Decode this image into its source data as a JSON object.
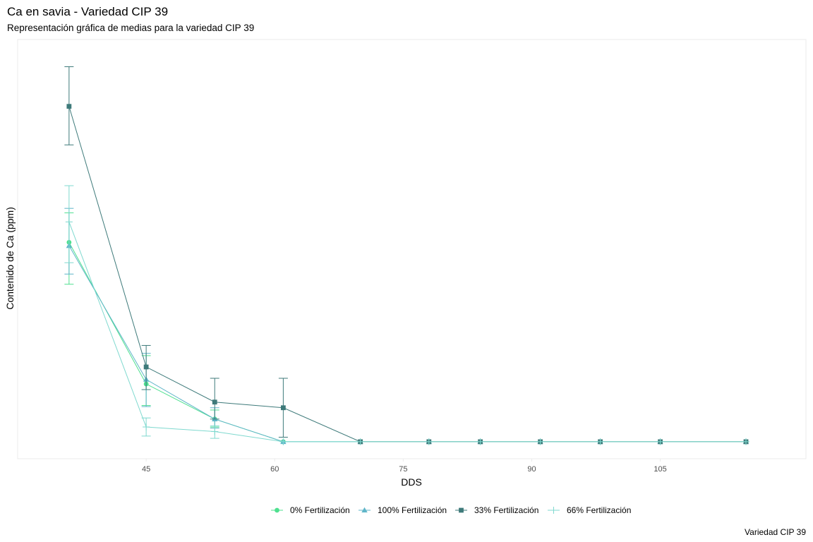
{
  "chart": {
    "title": "Ca en savia - Variedad CIP 39",
    "subtitle": "Representación gráfica de medias para la variedad CIP 39",
    "caption": "Variedad CIP 39"
  },
  "chart_data": {
    "type": "line",
    "xlabel": "DDS",
    "ylabel": "Contenido de Ca (ppm)",
    "xlim": [
      30,
      122
    ],
    "x_ticks": [
      45,
      60,
      75,
      90,
      105
    ],
    "x_tick_labels": [
      "45",
      "60",
      "75",
      "90",
      "105"
    ],
    "ylim": [
      -1.5,
      35.5
    ],
    "y_ticks_shown": false,
    "grid": false,
    "legend_position": "bottom",
    "x": [
      36,
      45,
      53,
      61,
      70,
      78,
      84,
      91,
      98,
      105,
      115
    ],
    "series": [
      {
        "name": "0% Fertilización",
        "color": "#4ee08f",
        "marker": "circle",
        "values": [
          17.6,
          5.1,
          2.0,
          0.0,
          0.0,
          0.0,
          0.0,
          0.0,
          0.0,
          0.0,
          0.0
        ],
        "err_low": [
          13.9,
          3.2,
          1.3,
          0.0,
          0.0,
          0.0,
          0.0,
          0.0,
          0.0,
          0.0,
          0.0
        ],
        "err_high": [
          20.2,
          7.6,
          2.8,
          0.0,
          0.0,
          0.0,
          0.0,
          0.0,
          0.0,
          0.0,
          0.0
        ]
      },
      {
        "name": "100% Fertilización",
        "color": "#5fb5c8",
        "marker": "triangle",
        "values": [
          17.3,
          5.5,
          2.0,
          0.0,
          0.0,
          0.0,
          0.0,
          0.0,
          0.0,
          0.0,
          0.0
        ],
        "err_low": [
          14.8,
          3.1,
          1.2,
          0.0,
          0.0,
          0.0,
          0.0,
          0.0,
          0.0,
          0.0,
          0.0
        ],
        "err_high": [
          20.6,
          7.8,
          3.0,
          0.0,
          0.0,
          0.0,
          0.0,
          0.0,
          0.0,
          0.0,
          0.0
        ]
      },
      {
        "name": "33% Fertilización",
        "color": "#3e7a7a",
        "marker": "square",
        "values": [
          29.6,
          6.6,
          3.5,
          3.0,
          0.0,
          0.0,
          0.0,
          0.0,
          0.0,
          0.0,
          0.0
        ],
        "err_low": [
          26.2,
          4.6,
          2.0,
          0.4,
          0.0,
          0.0,
          0.0,
          0.0,
          0.0,
          0.0,
          0.0
        ],
        "err_high": [
          33.1,
          8.5,
          5.6,
          5.6,
          0.0,
          0.0,
          0.0,
          0.0,
          0.0,
          0.0,
          0.0
        ]
      },
      {
        "name": "66% Fertilización",
        "color": "#7fd9cf",
        "marker": "plus",
        "values": [
          19.4,
          1.3,
          0.9,
          0.0,
          0.0,
          0.0,
          0.0,
          0.0,
          0.0,
          0.0,
          0.0
        ],
        "err_low": [
          15.8,
          0.5,
          0.3,
          0.0,
          0.0,
          0.0,
          0.0,
          0.0,
          0.0,
          0.0,
          0.0
        ],
        "err_high": [
          22.6,
          2.1,
          1.4,
          0.0,
          0.0,
          0.0,
          0.0,
          0.0,
          0.0,
          0.0,
          0.0
        ]
      }
    ]
  }
}
